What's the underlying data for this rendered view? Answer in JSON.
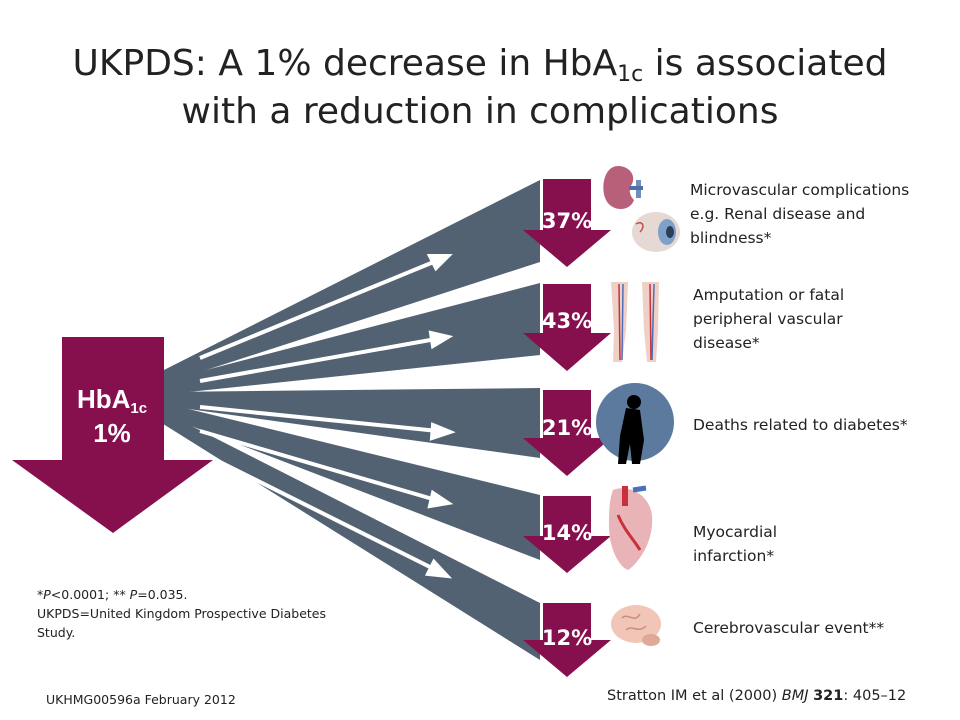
{
  "title": {
    "part1": "UKPDS: A 1% decrease in HbA",
    "sub": "1c",
    "part2": " is associated",
    "line2": "with a reduction in complications"
  },
  "hba1c": {
    "label": "HbA",
    "sub": "1c",
    "value": "1%"
  },
  "outcomes": [
    {
      "percent": "37%",
      "icon": "kidney-eye-icon",
      "lines": [
        "Microvascular complications",
        "e.g. Renal disease and",
        "blindness*"
      ]
    },
    {
      "percent": "43%",
      "icon": "legs-vessels-icon",
      "lines": [
        "Amputation or fatal",
        "peripheral vascular",
        "disease*"
      ]
    },
    {
      "percent": "21%",
      "icon": "bowed-figure-icon",
      "lines": [
        "Deaths related to diabetes*"
      ]
    },
    {
      "percent": "14%",
      "icon": "heart-icon",
      "lines": [
        "Myocardial",
        "infarction*"
      ]
    },
    {
      "percent": "12%",
      "icon": "brain-icon",
      "lines": [
        "Cerebrovascular event**"
      ]
    }
  ],
  "footnote": {
    "p1": "P",
    "t1": "<0.0001; ** ",
    "p2": "P",
    "t2": "=0.035.",
    "line2": "UKPDS=United Kingdom Prospective Diabetes",
    "line3": "Study."
  },
  "doc_code": "UKHMG00596a February 2012",
  "citation": {
    "authors": "Stratton IM et al (2000) ",
    "journal": "BMJ",
    "volume": "321",
    "pages": ": 405–12"
  },
  "colors": {
    "accent": "#86104e",
    "fan": "#536272",
    "arrow_line": "#ffffff"
  }
}
